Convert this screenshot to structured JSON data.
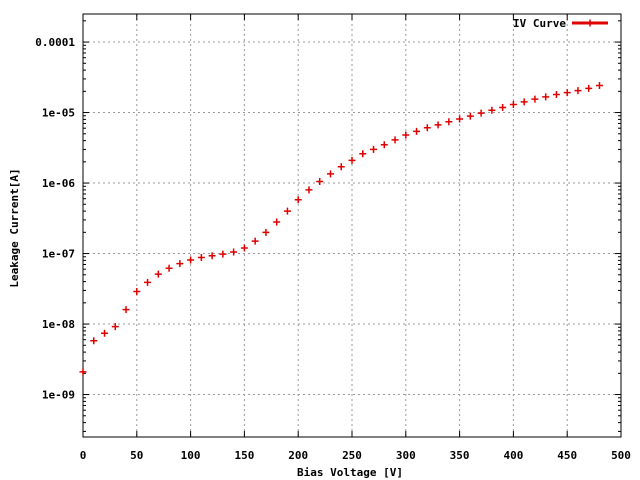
{
  "chart_data": {
    "type": "scatter",
    "xlabel": "Bias Voltage [V]",
    "ylabel": "Leakage Current[A]",
    "xlim": [
      0,
      500
    ],
    "ylim": [
      2.5e-10,
      0.00025
    ],
    "x_scale": "linear",
    "y_scale": "log",
    "x_ticks": [
      0,
      50,
      100,
      150,
      200,
      250,
      300,
      350,
      400,
      450,
      500
    ],
    "x_tick_labels": [
      "0",
      "50",
      "100",
      "150",
      "200",
      "250",
      "300",
      "350",
      "400",
      "450",
      "500"
    ],
    "y_ticks": [
      1e-09,
      1e-08,
      1e-07,
      1e-06,
      1e-05,
      0.0001
    ],
    "y_tick_labels": [
      "1e-09",
      "1e-08",
      "1e-07",
      "1e-06",
      "1e-05",
      "0.0001"
    ],
    "grid": true,
    "legend_position": "top-right",
    "color": "#e00000",
    "series": [
      {
        "name": "IV Curve",
        "x": [
          0,
          10,
          20,
          30,
          40,
          50,
          60,
          70,
          80,
          90,
          100,
          110,
          120,
          130,
          140,
          150,
          160,
          170,
          180,
          190,
          200,
          210,
          220,
          230,
          240,
          250,
          260,
          270,
          280,
          290,
          300,
          310,
          320,
          330,
          340,
          350,
          360,
          370,
          380,
          390,
          400,
          410,
          420,
          430,
          440,
          450,
          460,
          470,
          480
        ],
        "y": [
          2.1e-09,
          5.8e-09,
          7.4e-09,
          9.2e-09,
          1.6e-08,
          2.9e-08,
          3.9e-08,
          5.1e-08,
          6.2e-08,
          7.2e-08,
          8.1e-08,
          8.8e-08,
          9.3e-08,
          9.8e-08,
          1.05e-07,
          1.2e-07,
          1.5e-07,
          2e-07,
          2.8e-07,
          4e-07,
          5.8e-07,
          8e-07,
          1.05e-06,
          1.35e-06,
          1.7e-06,
          2.1e-06,
          2.6e-06,
          3e-06,
          3.5e-06,
          4.1e-06,
          4.8e-06,
          5.4e-06,
          6.1e-06,
          6.7e-06,
          7.4e-06,
          8.1e-06,
          8.9e-06,
          9.8e-06,
          1.08e-05,
          1.18e-05,
          1.3e-05,
          1.42e-05,
          1.55e-05,
          1.67e-05,
          1.8e-05,
          1.92e-05,
          2.05e-05,
          2.2e-05,
          2.42e-05
        ]
      }
    ]
  }
}
